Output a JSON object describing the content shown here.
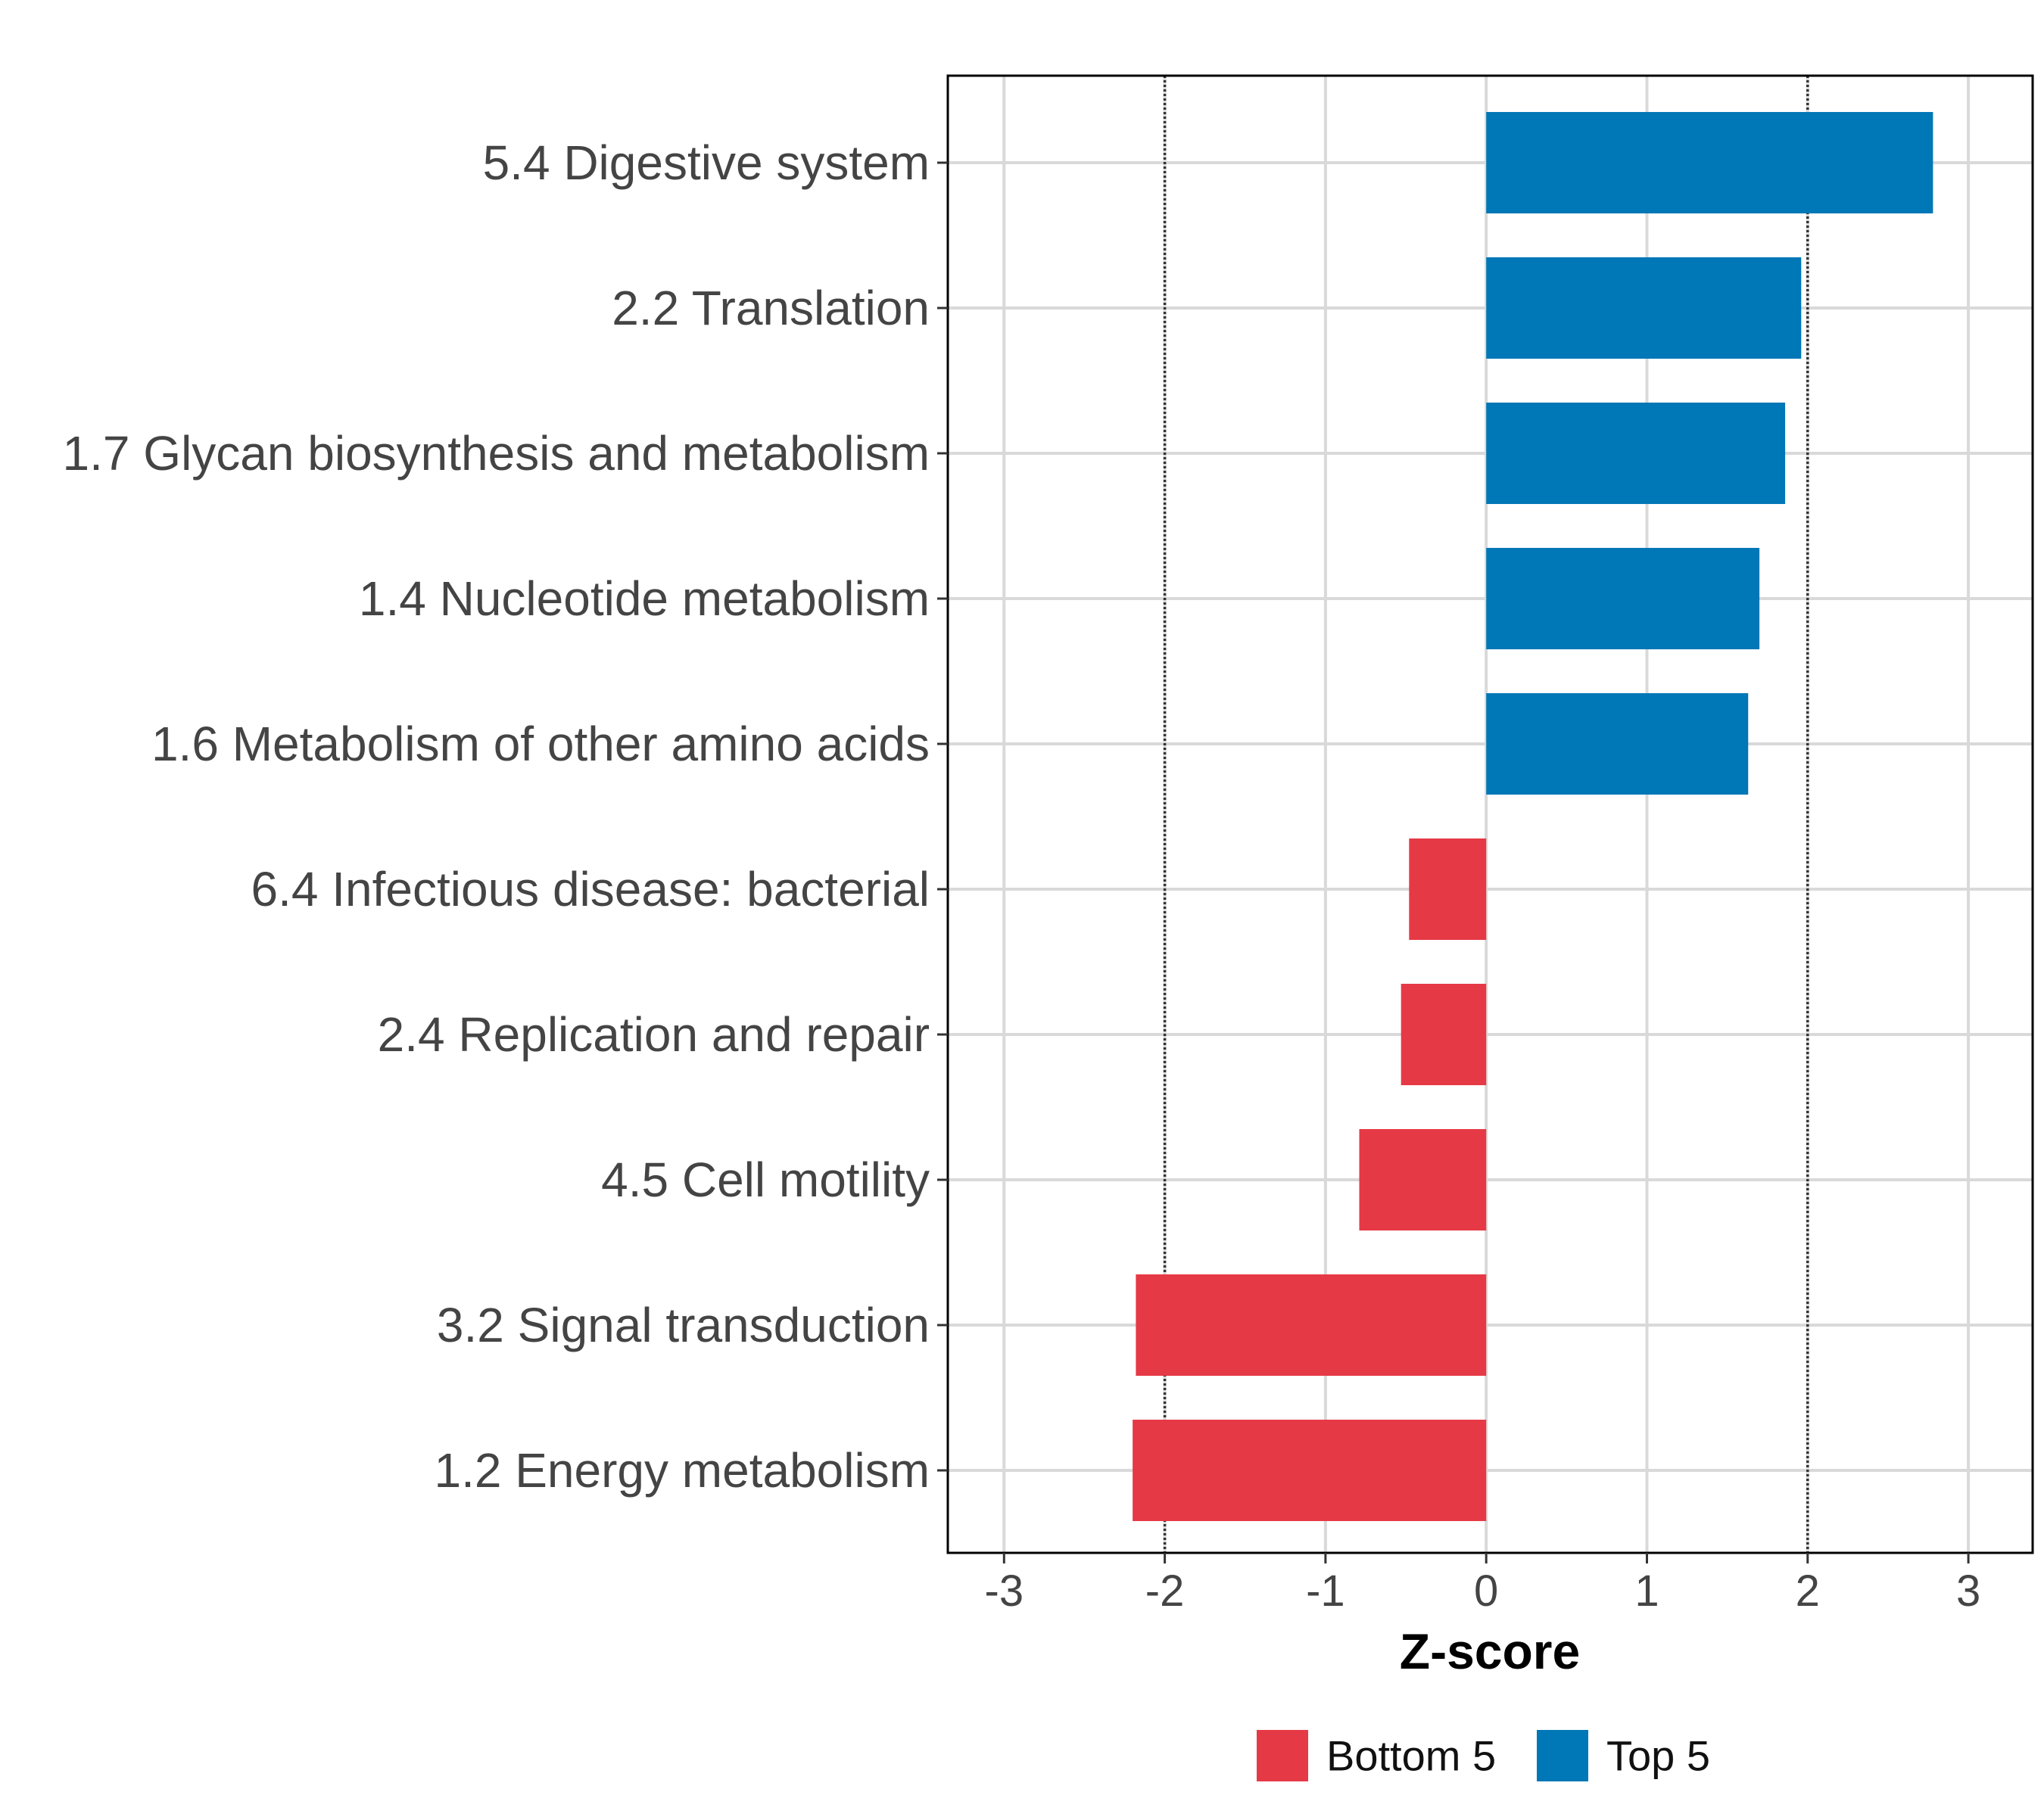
{
  "chart_data": {
    "type": "bar",
    "orientation": "horizontal",
    "title": "",
    "xlabel": "Z-score",
    "ylabel": "",
    "xlim": [
      -3.35,
      3.4
    ],
    "x_ticks": [
      -3,
      -2,
      -1,
      0,
      1,
      2,
      3
    ],
    "x_tick_labels": [
      "-3",
      "-2",
      "-1",
      "0",
      "1",
      "2",
      "3"
    ],
    "reference_lines": [
      -2,
      2
    ],
    "grid": true,
    "categories": [
      "5.4 Digestive system",
      "2.2 Translation",
      "1.7 Glycan biosynthesis and metabolism",
      "1.4 Nucleotide metabolism",
      "1.6 Metabolism of other amino acids",
      "6.4 Infectious disease: bacterial",
      "2.4 Replication and repair",
      "4.5 Cell motility",
      "3.2 Signal transduction",
      "1.2 Energy metabolism"
    ],
    "values": [
      2.78,
      1.96,
      1.86,
      1.7,
      1.63,
      -0.48,
      -0.53,
      -0.79,
      -2.18,
      -2.2
    ],
    "groups": [
      "Top 5",
      "Top 5",
      "Top 5",
      "Top 5",
      "Top 5",
      "Bottom 5",
      "Bottom 5",
      "Bottom 5",
      "Bottom 5",
      "Bottom 5"
    ],
    "legend": {
      "position": "bottom",
      "entries": [
        {
          "name": "Bottom 5",
          "color": "#E63946"
        },
        {
          "name": "Top 5",
          "color": "#0077B6"
        }
      ]
    }
  }
}
